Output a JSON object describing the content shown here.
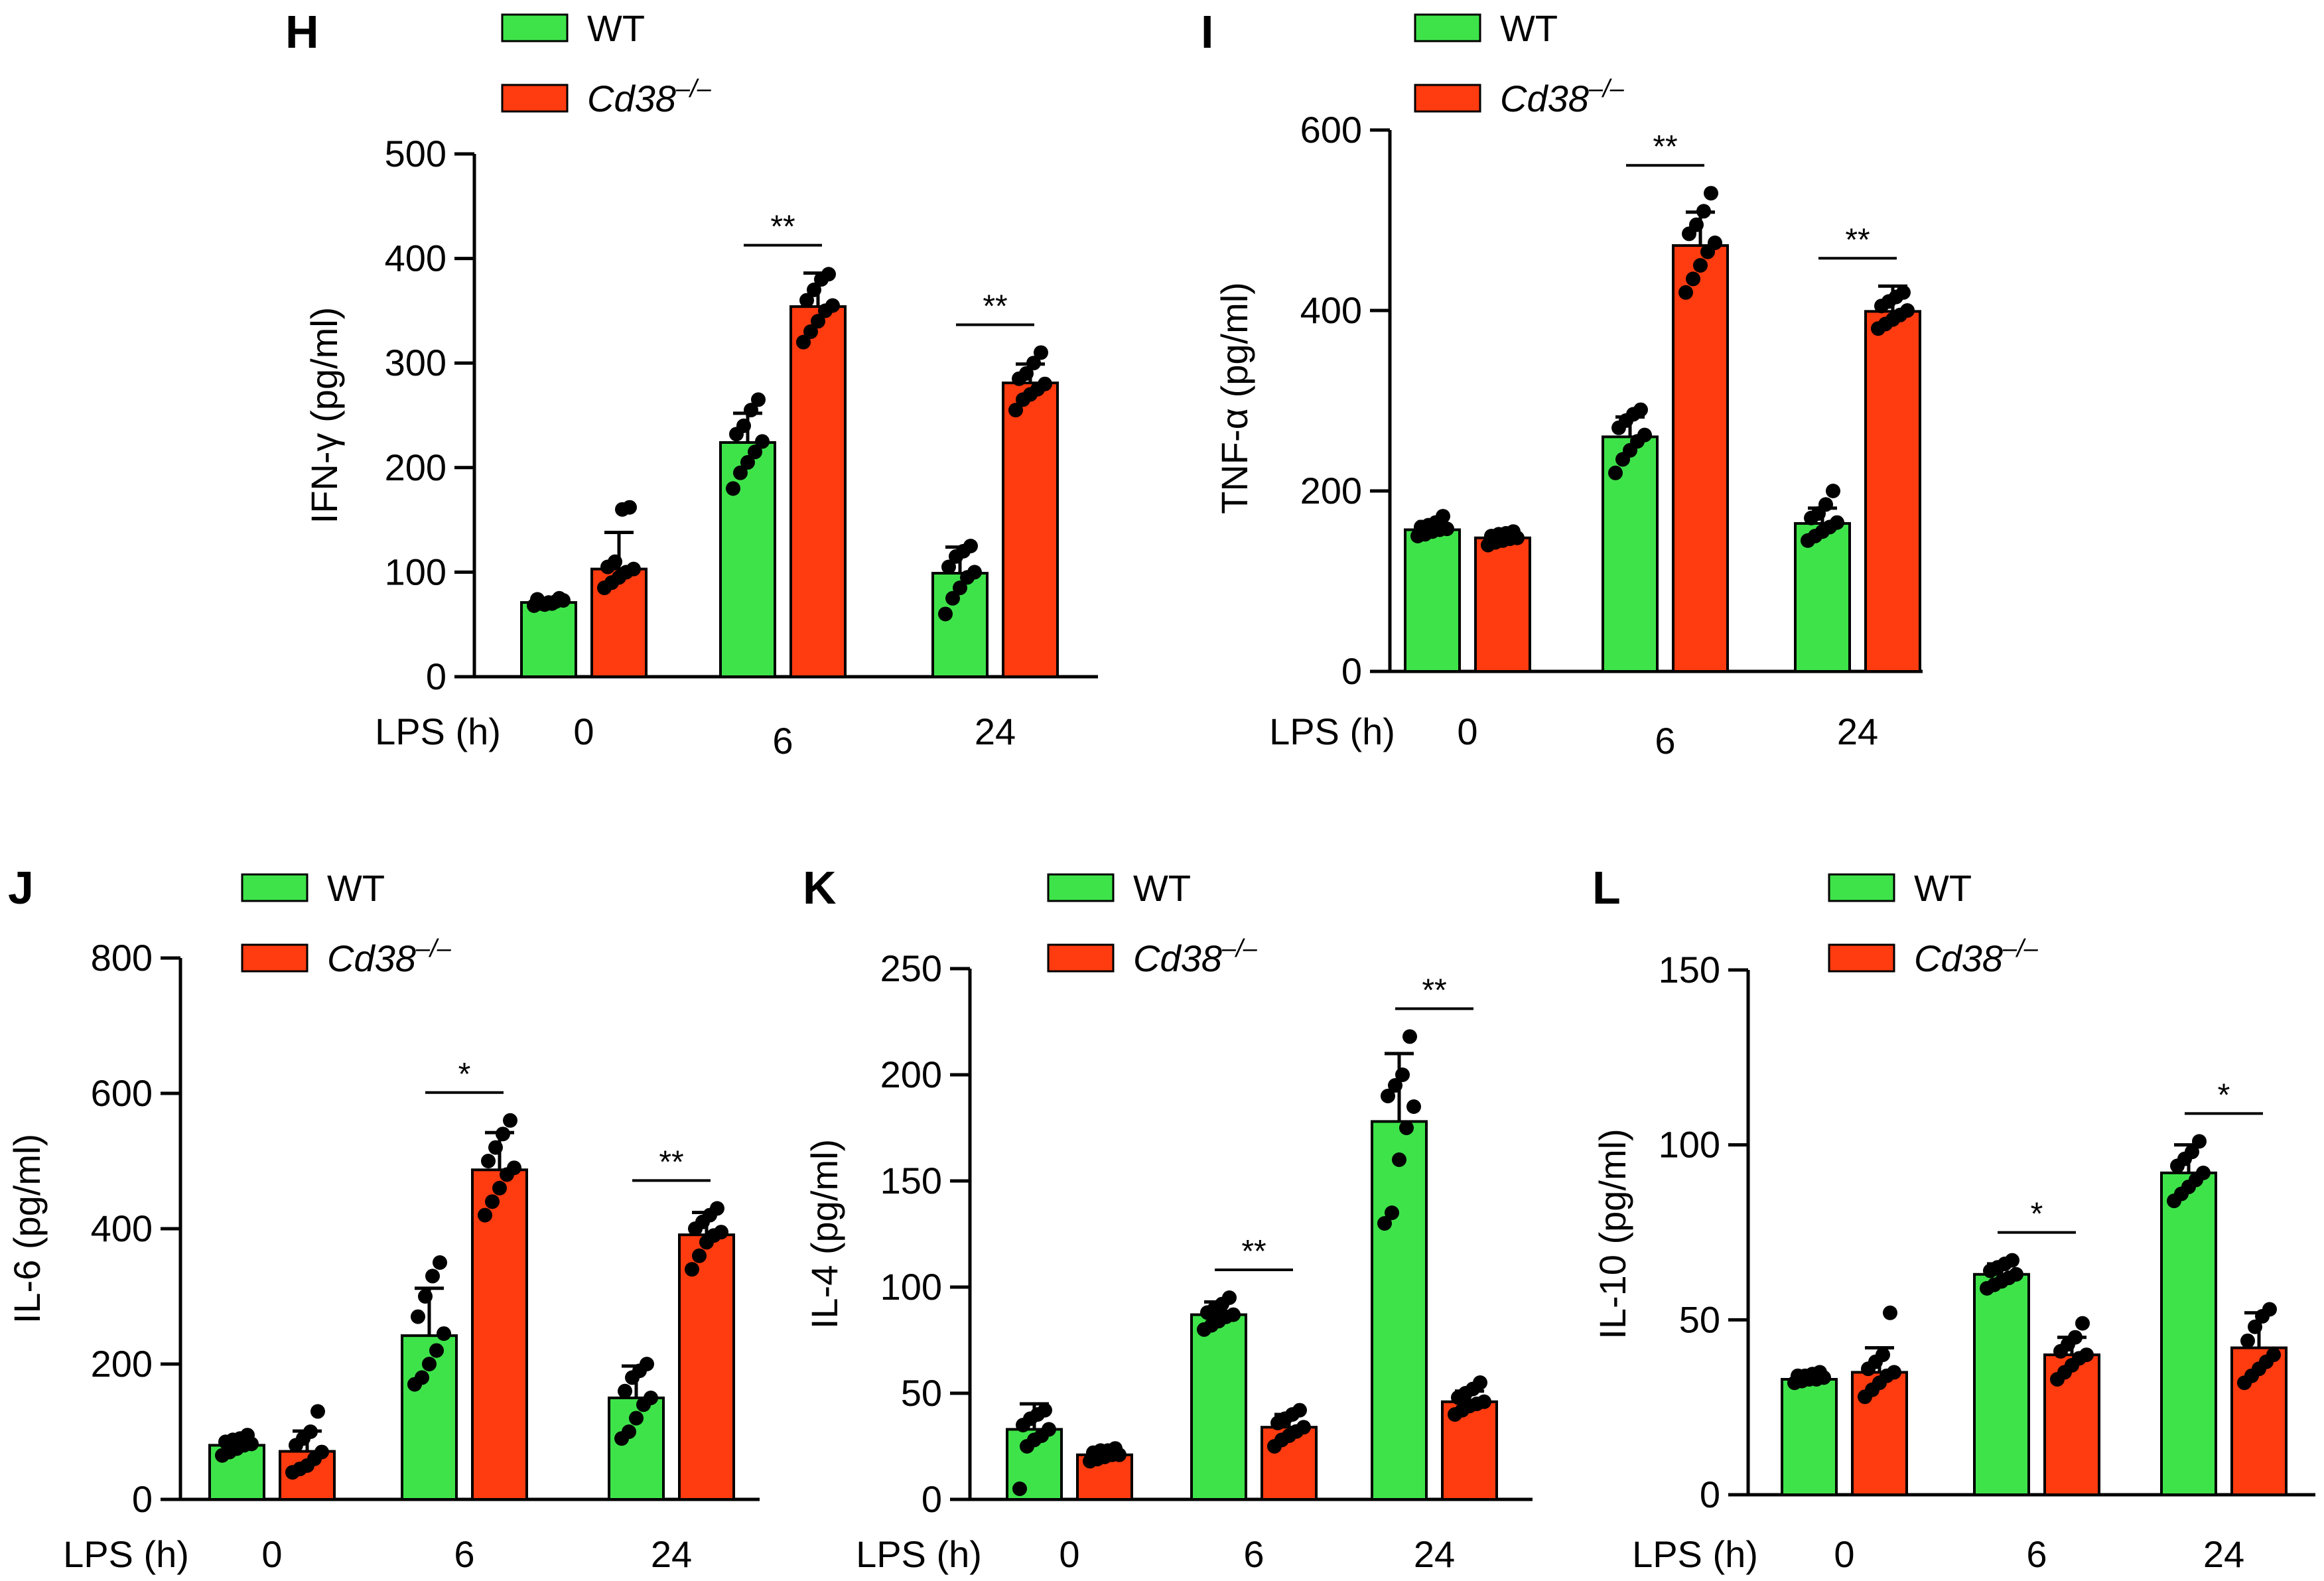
{
  "colors": {
    "WT": "#3ee34a",
    "KO": "#ff3b10",
    "dot": "#000000",
    "axis": "#000000"
  },
  "legend": [
    {
      "label": "WT",
      "color_key": "WT",
      "italic": false
    },
    {
      "label": "Cd38",
      "sup": "–/–",
      "color_key": "KO",
      "italic": true
    }
  ],
  "x_title": "LPS (h)",
  "groups": [
    "0",
    "6",
    "24"
  ],
  "chart_data": [
    {
      "panel": "H",
      "type": "bar",
      "title": "",
      "ylabel": "IFN-γ (pg/ml)",
      "ylim": [
        0,
        500
      ],
      "yticks": [
        0,
        100,
        200,
        300,
        400,
        500
      ],
      "categories": [
        "0",
        "6",
        "24"
      ],
      "series": [
        {
          "name": "WT",
          "values": [
            71,
            224,
            99
          ],
          "sd": [
            3,
            28,
            25
          ],
          "points": [
            [
              68,
              70,
              71,
              72,
              73,
              74,
              69,
              70,
              75
            ],
            [
              180,
              195,
              205,
              215,
              225,
              232,
              240,
              255,
              265
            ],
            [
              60,
              75,
              85,
              95,
              100,
              105,
              115,
              120,
              125
            ]
          ]
        },
        {
          "name": "Cd38–/–",
          "values": [
            103,
            354,
            281
          ],
          "sd": [
            35,
            32,
            18
          ],
          "points": [
            [
              85,
              90,
              95,
              100,
              103,
              105,
              110,
              160,
              162
            ],
            [
              320,
              330,
              340,
              350,
              355,
              360,
              370,
              380,
              385
            ],
            [
              255,
              265,
              270,
              275,
              280,
              285,
              290,
              300,
              310
            ]
          ]
        }
      ],
      "significance": [
        "",
        "**",
        "**"
      ]
    },
    {
      "panel": "I",
      "type": "bar",
      "title": "",
      "ylabel": "TNF-α (pg/ml)",
      "ylim": [
        0,
        600
      ],
      "yticks": [
        0,
        200,
        400,
        600
      ],
      "categories": [
        "0",
        "6",
        "24"
      ],
      "series": [
        {
          "name": "WT",
          "values": [
            157,
            260,
            164
          ],
          "sd": [
            9,
            22,
            17
          ],
          "points": [
            [
              150,
              152,
              155,
              157,
              158,
              160,
              162,
              165,
              172
            ],
            [
              220,
              235,
              245,
              255,
              262,
              270,
              278,
              285,
              290
            ],
            [
              145,
              150,
              155,
              160,
              165,
              170,
              175,
              185,
              200
            ]
          ]
        },
        {
          "name": "Cd38–/–",
          "values": [
            148,
            472,
            399
          ],
          "sd": [
            7,
            37,
            28
          ],
          "points": [
            [
              140,
              143,
              145,
              147,
              148,
              150,
              152,
              153,
              155
            ],
            [
              420,
              435,
              450,
              465,
              475,
              485,
              495,
              510,
              530
            ],
            [
              380,
              385,
              390,
              395,
              400,
              405,
              410,
              415,
              420
            ]
          ]
        }
      ],
      "significance": [
        "",
        "**",
        "**"
      ]
    },
    {
      "panel": "J",
      "type": "bar",
      "title": "",
      "ylabel": "IL-6 (pg/ml)",
      "ylim": [
        0,
        800
      ],
      "yticks": [
        0,
        200,
        400,
        600,
        800
      ],
      "categories": [
        "0",
        "6",
        "24"
      ],
      "series": [
        {
          "name": "WT",
          "values": [
            80,
            242,
            150
          ],
          "sd": [
            11,
            70,
            47
          ],
          "points": [
            [
              65,
              70,
              75,
              80,
              82,
              85,
              88,
              90,
              95
            ],
            [
              170,
              180,
              200,
              220,
              245,
              270,
              300,
              330,
              350
            ],
            [
              90,
              100,
              120,
              140,
              150,
              160,
              180,
              190,
              200
            ]
          ]
        },
        {
          "name": "Cd38–/–",
          "values": [
            71,
            487,
            391
          ],
          "sd": [
            30,
            55,
            33
          ],
          "points": [
            [
              40,
              45,
              50,
              60,
              70,
              80,
              90,
              100,
              130
            ],
            [
              420,
              440,
              460,
              480,
              490,
              500,
              520,
              540,
              560
            ],
            [
              340,
              360,
              380,
              390,
              395,
              400,
              410,
              420,
              430
            ]
          ]
        }
      ],
      "significance": [
        "",
        "*",
        "**"
      ]
    },
    {
      "panel": "K",
      "type": "bar",
      "title": "",
      "ylabel": "IL-4 (pg/ml)",
      "ylim": [
        0,
        250
      ],
      "yticks": [
        0,
        50,
        100,
        150,
        200,
        250
      ],
      "categories": [
        "0",
        "6",
        "24"
      ],
      "series": [
        {
          "name": "WT",
          "values": [
            33,
            87,
            178
          ],
          "sd": [
            12,
            6,
            32
          ],
          "points": [
            [
              5,
              25,
              28,
              30,
              33,
              35,
              38,
              40,
              42
            ],
            [
              80,
              82,
              84,
              86,
              87,
              88,
              90,
              92,
              95
            ],
            [
              130,
              135,
              160,
              175,
              185,
              190,
              195,
              200,
              218
            ]
          ]
        },
        {
          "name": "Cd38–/–",
          "values": [
            21,
            34,
            46
          ],
          "sd": [
            3,
            6,
            5
          ],
          "points": [
            [
              18,
              19,
              20,
              21,
              21,
              22,
              23,
              23,
              24
            ],
            [
              25,
              28,
              30,
              32,
              34,
              36,
              38,
              40,
              42
            ],
            [
              40,
              42,
              44,
              45,
              46,
              48,
              50,
              52,
              55
            ]
          ]
        }
      ],
      "significance": [
        "",
        "**",
        "**"
      ]
    },
    {
      "panel": "L",
      "type": "bar",
      "title": "",
      "ylabel": "IL-10 (pg/ml)",
      "ylim": [
        0,
        150
      ],
      "yticks": [
        0,
        50,
        100,
        150
      ],
      "categories": [
        "0",
        "6",
        "24"
      ],
      "series": [
        {
          "name": "WT",
          "values": [
            33,
            63,
            92
          ],
          "sd": [
            1.5,
            3,
            8
          ],
          "points": [
            [
              32,
              32.5,
              33,
              33,
              33.5,
              34,
              34,
              34.5,
              35
            ],
            [
              59,
              60,
              61,
              62,
              63,
              64,
              65,
              66,
              67
            ],
            [
              84,
              86,
              88,
              90,
              92,
              94,
              96,
              98,
              101
            ]
          ]
        },
        {
          "name": "Cd38–/–",
          "values": [
            35,
            40,
            42
          ],
          "sd": [
            7,
            5,
            10
          ],
          "points": [
            [
              28,
              30,
              32,
              34,
              35,
              36,
              38,
              40,
              52
            ],
            [
              33,
              35,
              37,
              39,
              40,
              41,
              43,
              45,
              49
            ],
            [
              32,
              34,
              36,
              38,
              40,
              44,
              48,
              51,
              53
            ]
          ]
        }
      ],
      "significance": [
        "",
        "*",
        "*"
      ]
    }
  ]
}
